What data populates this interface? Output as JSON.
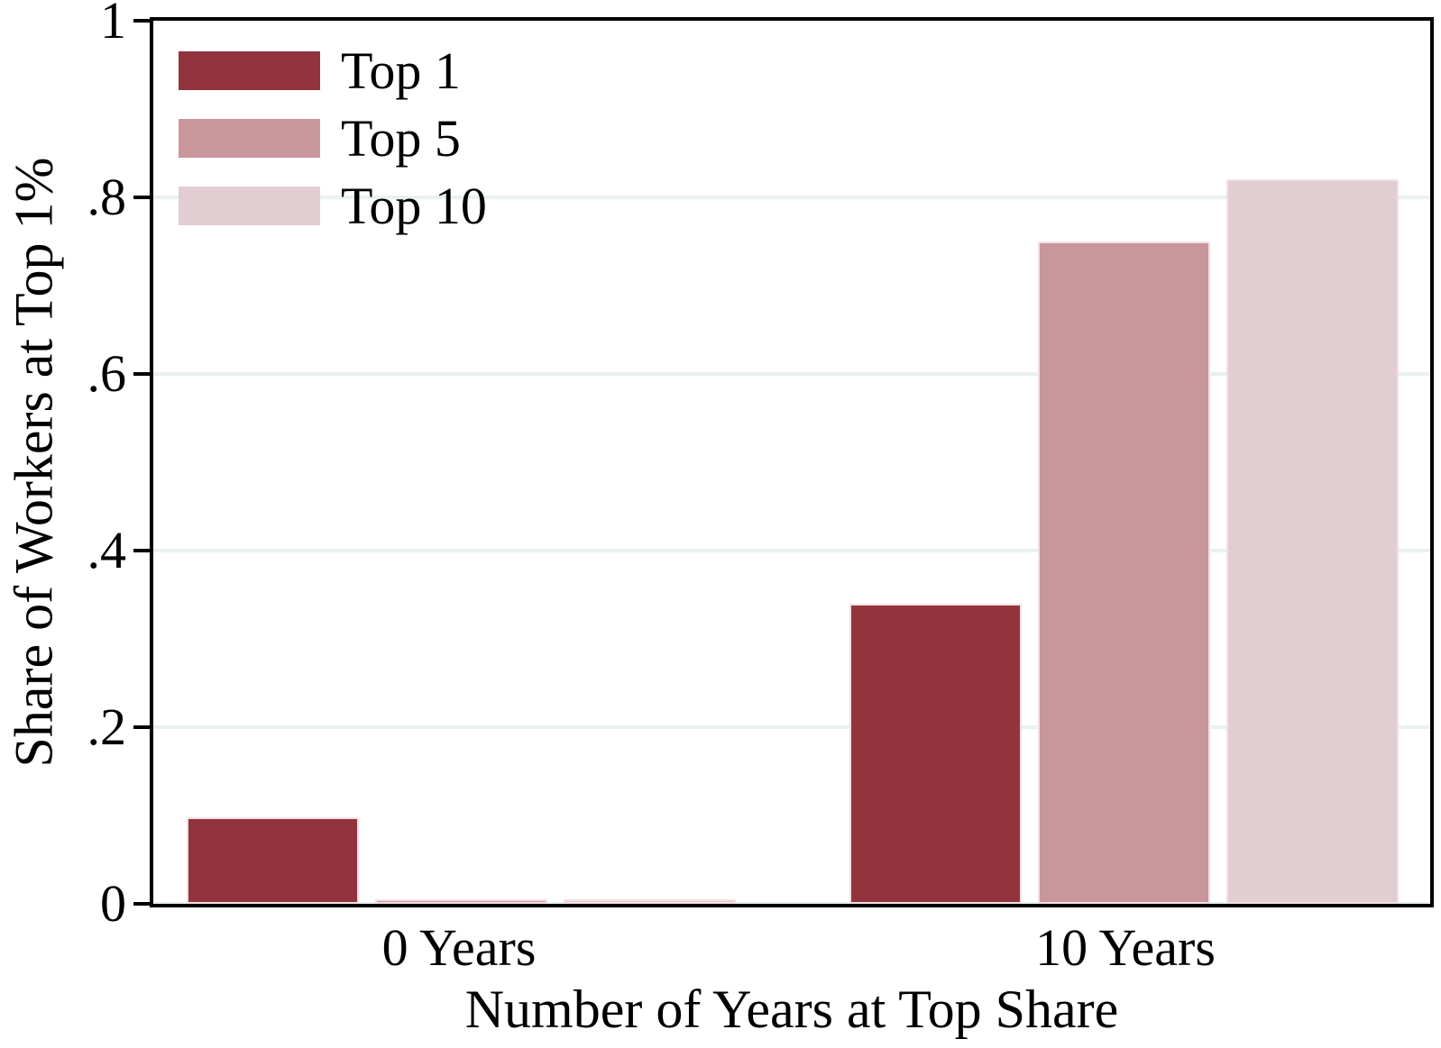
{
  "chart_data": {
    "type": "bar",
    "title": "",
    "categories": [
      "0 Years",
      "10 Years"
    ],
    "series": [
      {
        "name": "Top 1",
        "color": "#92343D",
        "values": [
          0.098,
          0.34
        ]
      },
      {
        "name": "Top 5",
        "color": "#C9969B",
        "values": [
          0.005,
          0.75
        ]
      },
      {
        "name": "Top 10",
        "color": "#E2CDD2",
        "values": [
          0.005,
          0.82
        ]
      }
    ],
    "xlabel": "Number of Years at Top Share",
    "ylabel": "Share of Workers at Top 1%",
    "ylim": [
      0,
      1
    ],
    "yticks": [
      {
        "value": 0,
        "label": "0"
      },
      {
        "value": 0.2,
        "label": ".2"
      },
      {
        "value": 0.4,
        "label": ".4"
      },
      {
        "value": 0.6,
        "label": ".6"
      },
      {
        "value": 0.8,
        "label": ".8"
      },
      {
        "value": 1,
        "label": "1"
      }
    ],
    "grid": "horizontal",
    "legend_position": "top-left",
    "colors": {
      "grid": "#E9F1F1",
      "axis": "#000000",
      "bar_outline": "#F2E0E2",
      "background": "#FFFFFF"
    }
  }
}
